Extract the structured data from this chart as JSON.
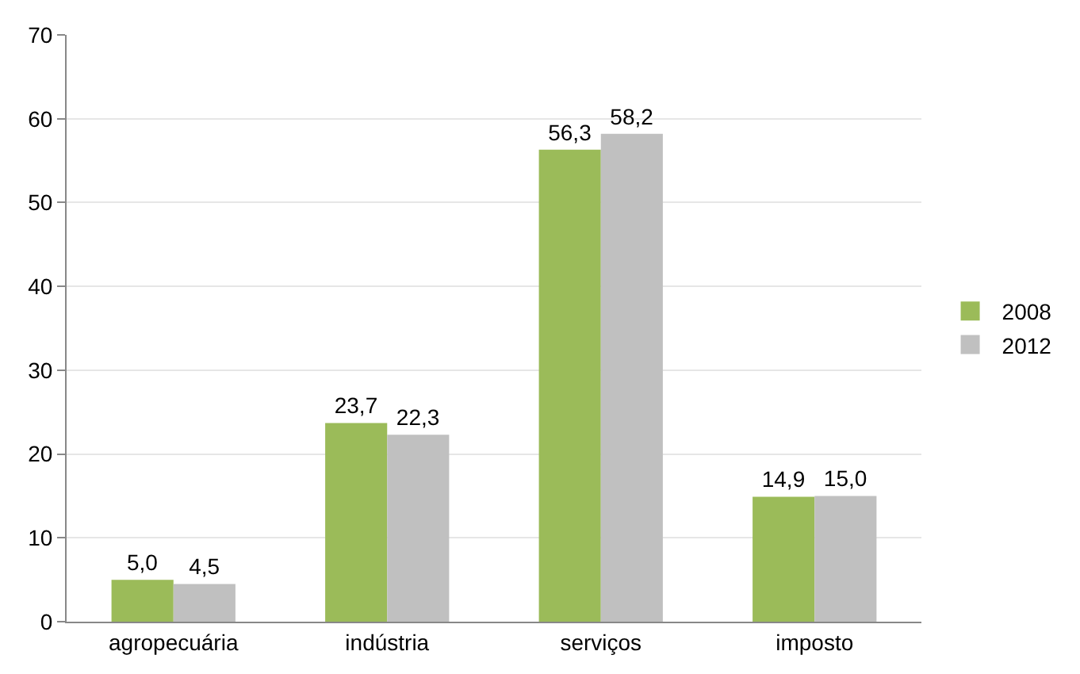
{
  "chart_data": {
    "type": "bar",
    "categories": [
      "agropecuária",
      "indústria",
      "serviços",
      "imposto"
    ],
    "series": [
      {
        "name": "2008",
        "color": "#9bbb59",
        "values": [
          5.0,
          23.7,
          56.3,
          14.9
        ],
        "value_labels": [
          "5,0",
          "23,7",
          "56,3",
          "14,9"
        ]
      },
      {
        "name": "2012",
        "color": "#c0c0c0",
        "values": [
          4.5,
          22.3,
          58.2,
          15.0
        ],
        "value_labels": [
          "4,5",
          "22,3",
          "58,2",
          "15,0"
        ]
      }
    ],
    "ylim": [
      0,
      70
    ],
    "yticks": [
      0,
      10,
      20,
      30,
      40,
      50,
      60,
      70
    ],
    "grid": "y",
    "legend": "right"
  }
}
